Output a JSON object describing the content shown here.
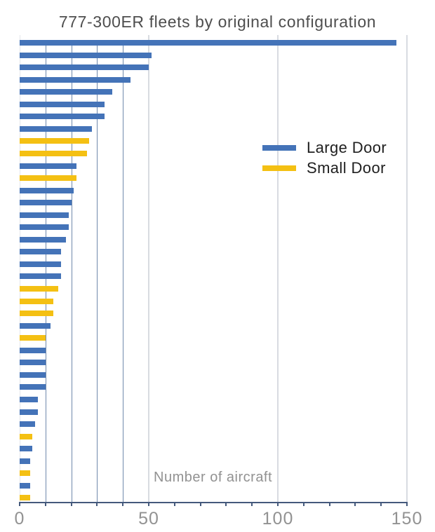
{
  "title": "777-300ER fleets by original configuration",
  "x_axis": {
    "label": "Number of aircraft",
    "tick_labels": [
      "0",
      "50",
      "100",
      "150"
    ],
    "tick_values": [
      0,
      50,
      100,
      150
    ],
    "minor_tick_step": 10,
    "min": 0,
    "max": 150
  },
  "legend": {
    "items": [
      {
        "label": "Large Door",
        "color": "#4473B8"
      },
      {
        "label": "Small Door",
        "color": "#F4C013"
      }
    ]
  },
  "colors": {
    "background": "#FFFFFF",
    "large_door": "#4473B8",
    "small_door": "#F4C013",
    "minor_gridline": "#7089AC",
    "major_gridline": "#D8DBE1",
    "axis": "#44597C",
    "title_text": "#4E4E4E",
    "axis_text": "#929292",
    "legend_text": "#202020"
  },
  "chart_data": {
    "type": "bar",
    "orientation": "horizontal",
    "title": "777-300ER fleets by original configuration",
    "xlabel": "Number of aircraft",
    "xlim": [
      0,
      150
    ],
    "x_major_gridlines": [
      50,
      100,
      150
    ],
    "x_minor_gridlines": [
      10,
      20,
      30,
      40
    ],
    "legend_position": "inside-upper-right",
    "grid": true,
    "series": [
      {
        "name": "Large Door",
        "color": "#4473B8"
      },
      {
        "name": "Small Door",
        "color": "#F4C013"
      }
    ],
    "bars": [
      {
        "series": "Large Door",
        "value": 146
      },
      {
        "series": "Large Door",
        "value": 51
      },
      {
        "series": "Large Door",
        "value": 50
      },
      {
        "series": "Large Door",
        "value": 43
      },
      {
        "series": "Large Door",
        "value": 36
      },
      {
        "series": "Large Door",
        "value": 33
      },
      {
        "series": "Large Door",
        "value": 33
      },
      {
        "series": "Large Door",
        "value": 28
      },
      {
        "series": "Small Door",
        "value": 27
      },
      {
        "series": "Small Door",
        "value": 26
      },
      {
        "series": "Large Door",
        "value": 22
      },
      {
        "series": "Small Door",
        "value": 22
      },
      {
        "series": "Large Door",
        "value": 21
      },
      {
        "series": "Large Door",
        "value": 20
      },
      {
        "series": "Large Door",
        "value": 19
      },
      {
        "series": "Large Door",
        "value": 19
      },
      {
        "series": "Large Door",
        "value": 18
      },
      {
        "series": "Large Door",
        "value": 16
      },
      {
        "series": "Large Door",
        "value": 16
      },
      {
        "series": "Large Door",
        "value": 16
      },
      {
        "series": "Small Door",
        "value": 15
      },
      {
        "series": "Small Door",
        "value": 13
      },
      {
        "series": "Small Door",
        "value": 13
      },
      {
        "series": "Large Door",
        "value": 12
      },
      {
        "series": "Small Door",
        "value": 10
      },
      {
        "series": "Large Door",
        "value": 10
      },
      {
        "series": "Large Door",
        "value": 10
      },
      {
        "series": "Large Door",
        "value": 10
      },
      {
        "series": "Large Door",
        "value": 10
      },
      {
        "series": "Large Door",
        "value": 7
      },
      {
        "series": "Large Door",
        "value": 7
      },
      {
        "series": "Large Door",
        "value": 6
      },
      {
        "series": "Small Door",
        "value": 5
      },
      {
        "series": "Large Door",
        "value": 5
      },
      {
        "series": "Large Door",
        "value": 4
      },
      {
        "series": "Small Door",
        "value": 4
      },
      {
        "series": "Large Door",
        "value": 4
      },
      {
        "series": "Small Door",
        "value": 4
      }
    ]
  }
}
